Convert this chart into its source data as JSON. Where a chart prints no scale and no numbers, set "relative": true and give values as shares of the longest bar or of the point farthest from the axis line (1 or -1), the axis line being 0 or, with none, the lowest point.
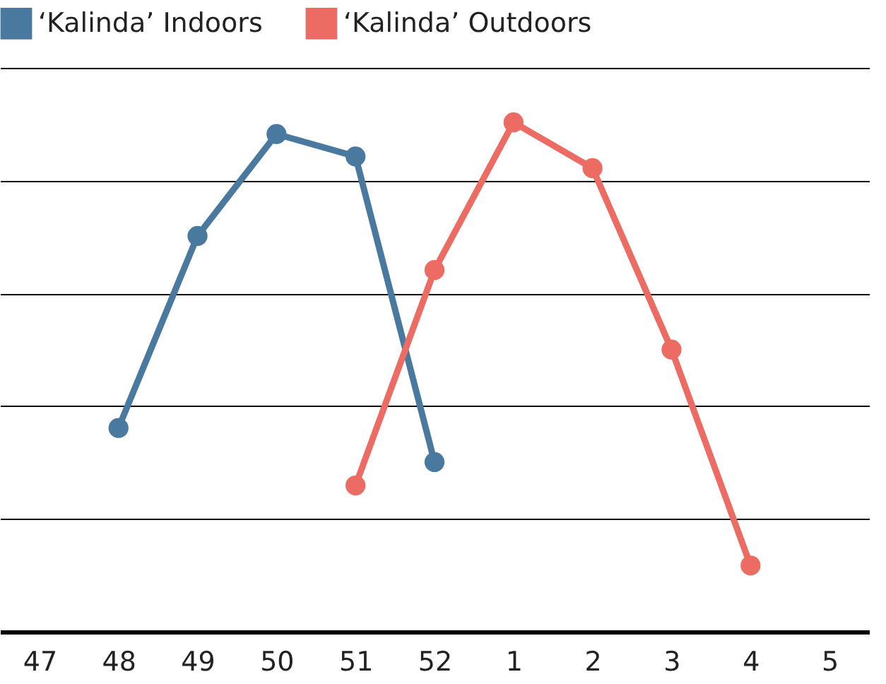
{
  "chart_data": {
    "type": "line",
    "relative": true,
    "categories": [
      "47",
      "48",
      "49",
      "50",
      "51",
      "52",
      "1",
      "2",
      "3",
      "4",
      "5"
    ],
    "series": [
      {
        "name": "‘Kalinda’ Indoors",
        "color": "#4a79a0",
        "values": [
          null,
          0.4,
          0.777,
          0.977,
          0.933,
          0.333,
          null,
          null,
          null,
          null,
          null
        ]
      },
      {
        "name": "‘Kalinda’ Outdoors",
        "color": "#ec6b62",
        "values": [
          null,
          null,
          null,
          null,
          0.287,
          0.71,
          1,
          0.91,
          0.554,
          0.13,
          null
        ]
      }
    ],
    "marker": "circle",
    "line_style": "solid",
    "grid": "y",
    "legend": "top left"
  }
}
